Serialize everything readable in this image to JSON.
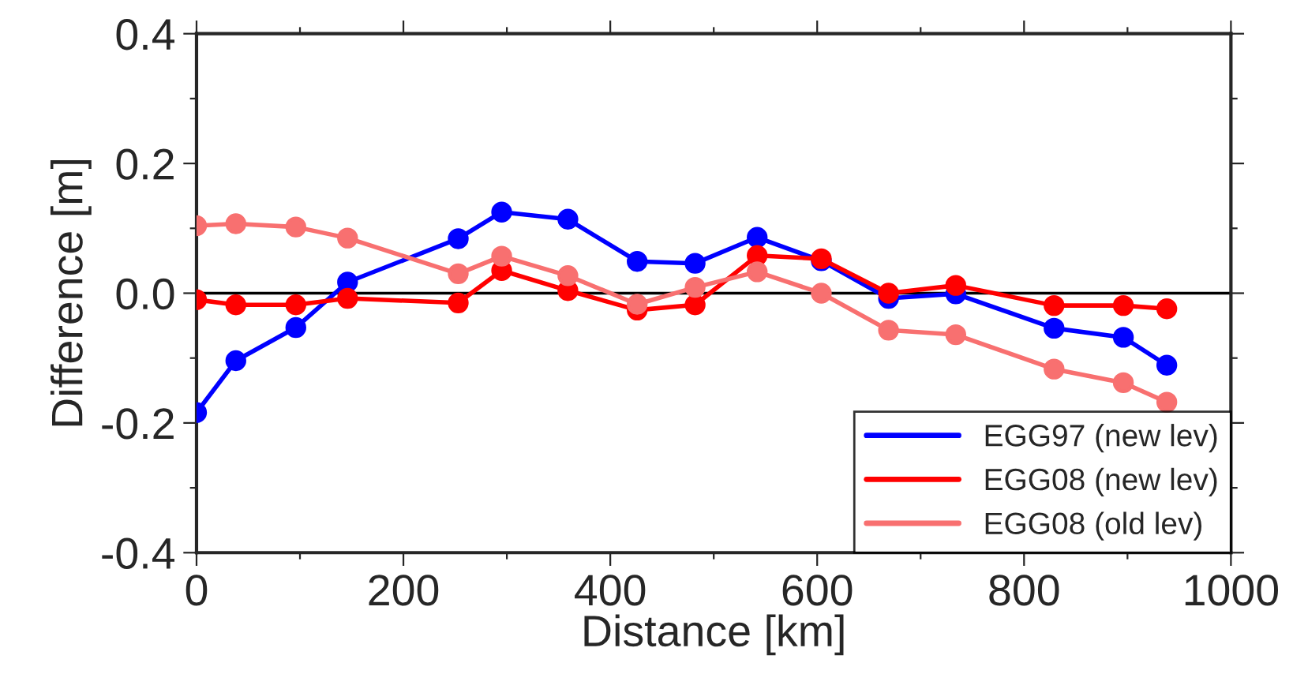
{
  "chart_data": {
    "type": "line",
    "xlabel": "Distance [km]",
    "ylabel": "Difference [m]",
    "xlim": [
      0,
      1000
    ],
    "ylim": [
      -0.4,
      0.4
    ],
    "xticks": [
      0,
      {
        "value": 100,
        "label": null
      },
      200,
      {
        "value": 300,
        "label": null
      },
      400,
      {
        "value": 500,
        "label": null
      },
      600,
      {
        "value": 700,
        "label": null
      },
      800,
      {
        "value": 900,
        "label": null
      },
      1000
    ],
    "yticks": [
      {
        "value": -0.4,
        "label": "-0.4"
      },
      {
        "value": -0.3,
        "label": null
      },
      {
        "value": -0.2,
        "label": "-0.2"
      },
      {
        "value": -0.1,
        "label": null
      },
      {
        "value": 0.0,
        "label": "0.0"
      },
      {
        "value": 0.1,
        "label": null
      },
      {
        "value": 0.2,
        "label": "0.2"
      },
      {
        "value": 0.3,
        "label": null
      },
      {
        "value": 0.4,
        "label": "0.4"
      }
    ],
    "x": [
      0,
      38,
      96,
      146,
      253,
      295,
      359,
      426,
      482,
      542,
      604,
      669,
      734,
      829,
      896,
      938
    ],
    "marker": "circle",
    "line_style": "solid",
    "grid": false,
    "legend": "bottom right",
    "ref_lines": [
      {
        "axis": "y",
        "value": 0,
        "color": "#000000"
      }
    ],
    "series": [
      {
        "name": "EGG97 (new lev)",
        "color": "#0000ff",
        "values": [
          -0.184,
          -0.104,
          -0.053,
          0.017,
          0.084,
          0.125,
          0.114,
          0.049,
          0.046,
          0.086,
          0.05,
          -0.008,
          -0.001,
          -0.054,
          -0.068,
          -0.111
        ]
      },
      {
        "name": "EGG08 (new lev)",
        "color": "#ff0000",
        "values": [
          -0.01,
          -0.018,
          -0.018,
          -0.008,
          -0.015,
          0.035,
          0.004,
          -0.026,
          -0.018,
          0.058,
          0.053,
          0.0,
          0.012,
          -0.019,
          -0.019,
          -0.024
        ]
      },
      {
        "name": "EGG08 (old lev)",
        "color": "#f87070",
        "values": [
          0.104,
          0.107,
          0.102,
          0.085,
          0.03,
          0.057,
          0.027,
          -0.017,
          0.009,
          0.033,
          0.0,
          -0.057,
          -0.064,
          -0.117,
          -0.138,
          -0.168
        ]
      }
    ]
  }
}
